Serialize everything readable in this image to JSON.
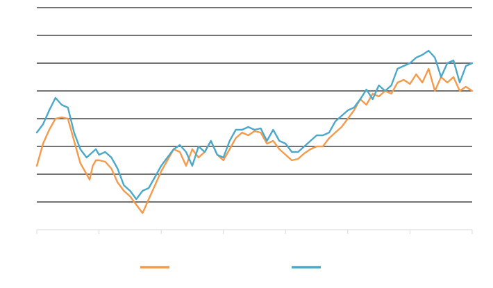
{
  "chart_data": {
    "type": "line",
    "title": "",
    "xlabel": "",
    "ylabel": "",
    "grid": true,
    "legend": "bottom",
    "x_range": [
      0,
      140
    ],
    "ylim": [
      0,
      8
    ],
    "series": [
      {
        "color": "#f59a4a",
        "x": [
          0,
          2,
          4,
          6,
          8,
          10,
          12,
          14,
          16,
          17,
          18,
          19,
          20,
          22,
          24,
          26,
          28,
          30,
          32,
          34,
          36,
          38,
          40,
          42,
          44,
          46,
          48,
          50,
          52,
          54,
          56,
          58,
          60,
          62,
          64,
          66,
          68,
          70,
          72,
          74,
          76,
          78,
          80,
          82,
          84,
          86,
          88,
          90,
          92,
          94,
          96,
          98,
          100,
          102,
          104,
          106,
          108,
          110,
          112,
          114,
          116,
          118,
          120,
          122,
          124,
          126,
          128,
          130,
          132,
          134,
          136,
          138,
          140
        ],
        "y": [
          2.3,
          3.1,
          3.6,
          4.0,
          4.05,
          4.0,
          3.2,
          2.4,
          2.0,
          1.8,
          2.3,
          2.5,
          2.5,
          2.45,
          2.2,
          1.7,
          1.4,
          1.2,
          0.9,
          0.6,
          1.1,
          1.6,
          2.1,
          2.5,
          2.9,
          2.8,
          2.3,
          2.9,
          2.6,
          2.8,
          3.2,
          2.7,
          2.5,
          2.9,
          3.3,
          3.5,
          3.4,
          3.55,
          3.5,
          3.1,
          3.2,
          2.9,
          2.7,
          2.5,
          2.55,
          2.75,
          2.9,
          3.0,
          3.0,
          3.3,
          3.5,
          3.7,
          4.0,
          4.3,
          4.7,
          4.5,
          4.9,
          4.8,
          5.0,
          4.9,
          5.3,
          5.4,
          5.25,
          5.6,
          5.3,
          5.8,
          5.0,
          5.5,
          5.3,
          5.5,
          5.0,
          5.15,
          5.0
        ]
      },
      {
        "color": "#4aa8c8",
        "x": [
          0,
          2,
          4,
          6,
          8,
          10,
          12,
          14,
          16,
          17,
          18,
          19,
          20,
          22,
          24,
          26,
          28,
          30,
          32,
          34,
          36,
          38,
          40,
          42,
          44,
          46,
          48,
          50,
          52,
          54,
          56,
          58,
          60,
          62,
          64,
          66,
          68,
          70,
          72,
          74,
          76,
          78,
          80,
          82,
          84,
          86,
          88,
          90,
          92,
          94,
          96,
          98,
          100,
          102,
          104,
          106,
          108,
          110,
          112,
          114,
          116,
          118,
          120,
          122,
          124,
          126,
          128,
          130,
          132,
          134,
          136,
          138,
          140
        ],
        "y": [
          3.5,
          3.8,
          4.3,
          4.75,
          4.5,
          4.4,
          3.5,
          2.9,
          2.6,
          2.7,
          2.8,
          2.9,
          2.7,
          2.8,
          2.6,
          2.2,
          1.6,
          1.4,
          1.1,
          1.4,
          1.5,
          1.9,
          2.3,
          2.6,
          2.9,
          3.05,
          2.8,
          2.3,
          3.0,
          2.8,
          3.2,
          2.7,
          2.6,
          3.2,
          3.6,
          3.6,
          3.7,
          3.6,
          3.65,
          3.2,
          3.6,
          3.2,
          3.1,
          2.8,
          2.8,
          3.0,
          3.2,
          3.4,
          3.4,
          3.5,
          3.9,
          4.1,
          4.3,
          4.4,
          4.7,
          5.05,
          4.7,
          5.2,
          5.0,
          5.2,
          5.8,
          5.9,
          6.0,
          6.2,
          6.3,
          6.45,
          6.2,
          5.5,
          6.0,
          6.1,
          5.3,
          5.9,
          6.0
        ]
      }
    ]
  }
}
